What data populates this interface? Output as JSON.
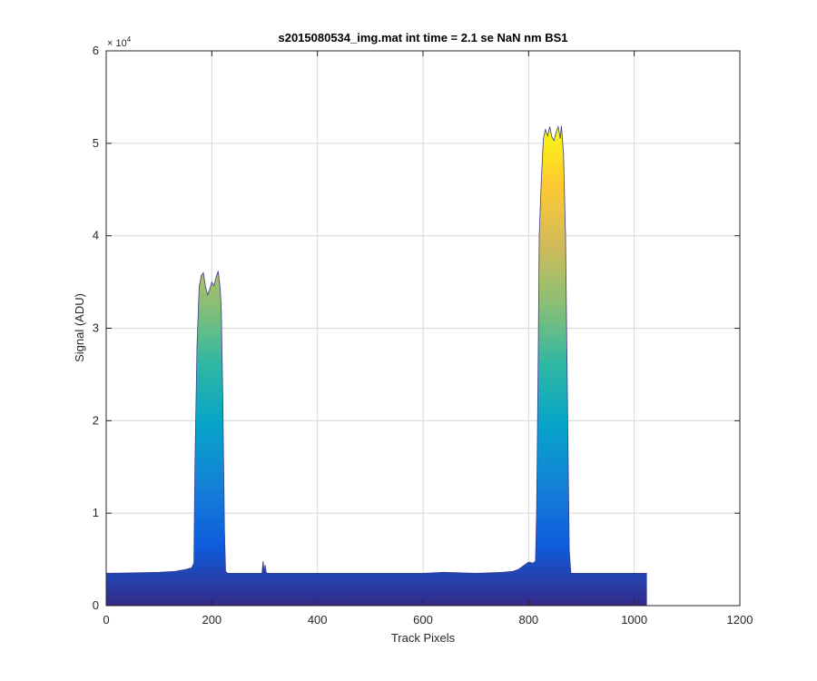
{
  "chart_data": {
    "type": "area",
    "title": "s2015080534_img.mat int time = 2.1 se  NaN nm BS1",
    "xlabel": "Track Pixels",
    "ylabel": "Signal (ADU)",
    "y_exponent_label": "× 10",
    "y_exponent_power": "4",
    "xlim": [
      0,
      1200
    ],
    "ylim": [
      0,
      60000
    ],
    "xticks": [
      0,
      200,
      400,
      600,
      800,
      1000,
      1200
    ],
    "xtick_labels": [
      "0",
      "200",
      "400",
      "600",
      "800",
      "1000",
      "1200"
    ],
    "yticks": [
      0,
      10000,
      20000,
      30000,
      40000,
      50000,
      60000
    ],
    "ytick_labels": [
      "0",
      "1",
      "2",
      "3",
      "4",
      "5",
      "6"
    ],
    "grid": true,
    "colormap": "parula",
    "series": [
      {
        "x": [
          0,
          60,
          100,
          130,
          150,
          162,
          166,
          168,
          172,
          176,
          180,
          184,
          188,
          192,
          196,
          200,
          204,
          208,
          212,
          216,
          218,
          221,
          224,
          226,
          230,
          260,
          295,
          297,
          299,
          301,
          303,
          305,
          320,
          400,
          500,
          600,
          640,
          700,
          730,
          750,
          770,
          780,
          790,
          800,
          808,
          813,
          815,
          818,
          820,
          824,
          828,
          832,
          836,
          840,
          844,
          848,
          852,
          856,
          860,
          862,
          866,
          870,
          874,
          877,
          880,
          900,
          1000,
          1024
        ],
        "y": [
          3500,
          3550,
          3600,
          3700,
          3900,
          4100,
          4600,
          15000,
          28000,
          34500,
          35700,
          36000,
          34500,
          33600,
          34200,
          35000,
          34600,
          35500,
          36200,
          34300,
          32000,
          22000,
          8000,
          3700,
          3500,
          3500,
          3500,
          4800,
          3700,
          4400,
          3600,
          3500,
          3500,
          3500,
          3500,
          3500,
          3600,
          3500,
          3550,
          3600,
          3700,
          3900,
          4300,
          4700,
          4600,
          4800,
          10000,
          26000,
          40000,
          46000,
          50500,
          51500,
          50800,
          51800,
          50700,
          50300,
          51200,
          51800,
          50500,
          51900,
          49000,
          40000,
          20000,
          6000,
          3500,
          3500,
          3500,
          3500
        ]
      }
    ]
  }
}
